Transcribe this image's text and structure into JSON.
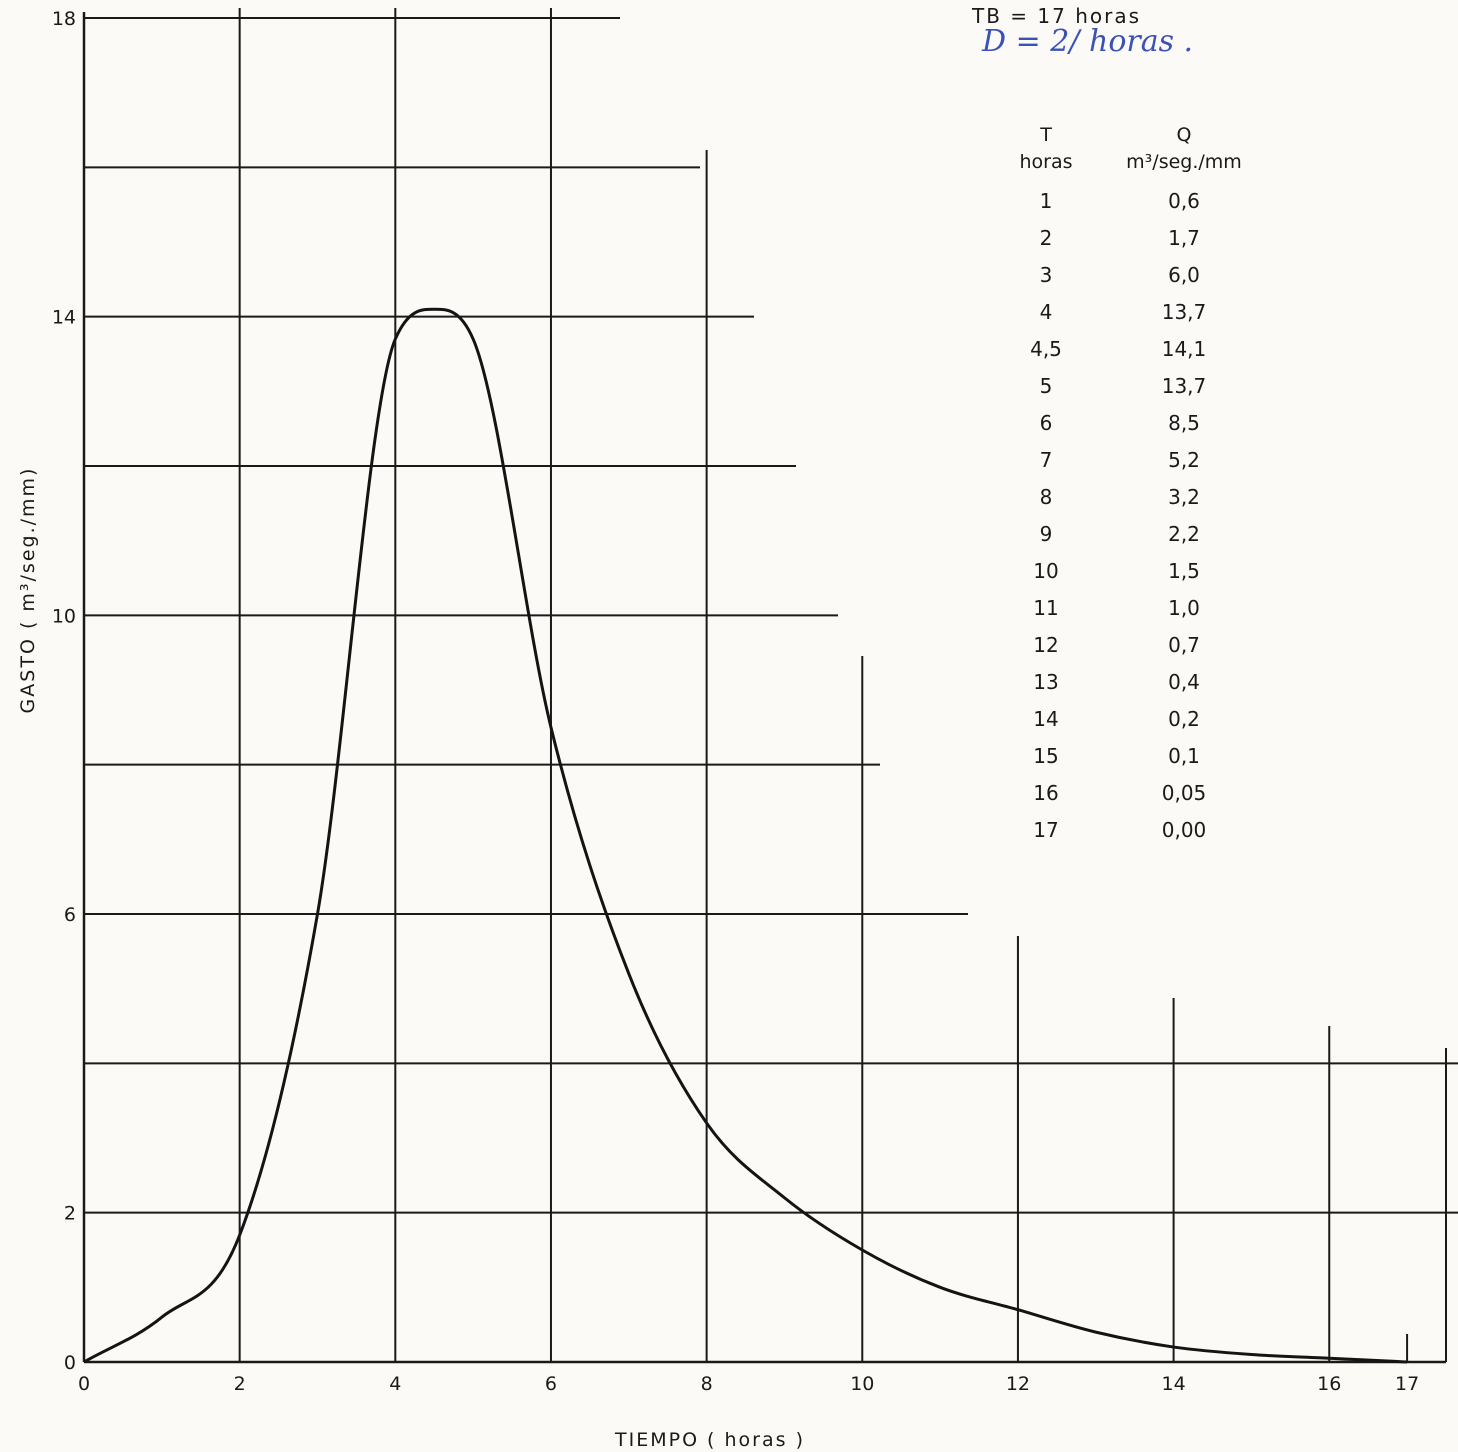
{
  "chart_data": {
    "type": "line",
    "title": "",
    "xlabel": "TIEMPO ( horas )",
    "ylabel": "GASTO ( m³/seg./mm)",
    "xlim": [
      0,
      17.5
    ],
    "ylim": [
      0,
      18
    ],
    "x_ticks": [
      "0",
      "2",
      "4",
      "6",
      "8",
      "10",
      "12",
      "14",
      "16",
      "17"
    ],
    "y_ticks": [
      "0",
      "2",
      "6",
      "10",
      "14",
      "18"
    ],
    "grid": true,
    "series": [
      {
        "x": [
          0,
          1,
          2,
          3,
          4,
          4.5,
          5,
          6,
          7,
          8,
          9,
          10,
          11,
          12,
          13,
          14,
          15,
          16,
          17
        ],
        "y": [
          0,
          0.6,
          1.7,
          6.0,
          13.7,
          14.1,
          13.7,
          8.5,
          5.2,
          3.2,
          2.2,
          1.5,
          1.0,
          0.7,
          0.4,
          0.2,
          0.1,
          0.05,
          0.0
        ]
      }
    ]
  },
  "annotations": {
    "tb": "TB = 17  horas",
    "d": "D = 2/ horas ."
  },
  "table": {
    "col1_header": "T",
    "col1_sub": "horas",
    "col2_header": "Q",
    "col2_sub": "m³/seg./mm",
    "rows": [
      [
        "1",
        "0,6"
      ],
      [
        "2",
        "1,7"
      ],
      [
        "3",
        "6,0"
      ],
      [
        "4",
        "13,7"
      ],
      [
        "4,5",
        "14,1"
      ],
      [
        "5",
        "13,7"
      ],
      [
        "6",
        "8,5"
      ],
      [
        "7",
        "5,2"
      ],
      [
        "8",
        "3,2"
      ],
      [
        "9",
        "2,2"
      ],
      [
        "10",
        "1,5"
      ],
      [
        "11",
        "1,0"
      ],
      [
        "12",
        "0,7"
      ],
      [
        "13",
        "0,4"
      ],
      [
        "14",
        "0,2"
      ],
      [
        "15",
        "0,1"
      ],
      [
        "16",
        "0,05"
      ],
      [
        "17",
        "0,00"
      ]
    ]
  }
}
